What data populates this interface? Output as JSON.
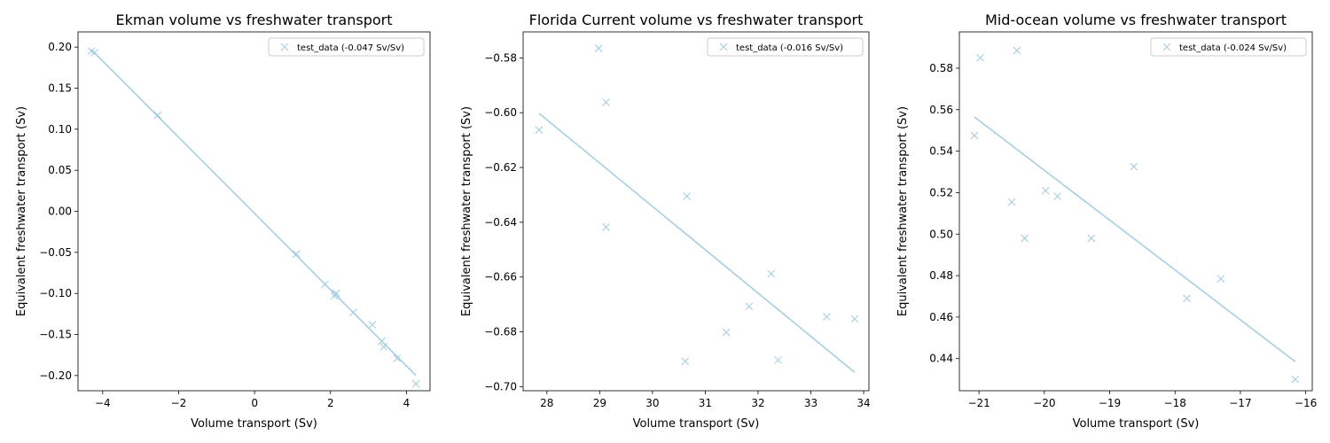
{
  "chart_data": [
    {
      "type": "scatter",
      "title": "Ekman volume vs freshwater transport",
      "xlabel": "Volume transport (Sv)",
      "ylabel": "Equivalent freshwater transport (Sv)",
      "xlim": [
        -4.65,
        4.62
      ],
      "ylim": [
        -0.2185,
        0.2185
      ],
      "xticks": [
        -4,
        -2,
        0,
        2,
        4
      ],
      "yticks": [
        -0.2,
        -0.15,
        -0.1,
        -0.05,
        0.0,
        0.05,
        0.1,
        0.15,
        0.2
      ],
      "ytick_labels": [
        "−0.20",
        "−0.15",
        "−0.10",
        "−0.05",
        "0.00",
        "0.05",
        "0.10",
        "0.15",
        "0.20"
      ],
      "xtick_labels": [
        "−4",
        "−2",
        "0",
        "2",
        "4"
      ],
      "legend": {
        "label": "test_data (-0.047 Sv/Sv)",
        "position": "upper right"
      },
      "series": [
        {
          "name": "test_data (-0.047 Sv/Sv)",
          "color": "#a6cee3",
          "marker": "x",
          "x": [
            -4.3,
            -4.22,
            -2.55,
            1.1,
            1.85,
            2.1,
            2.15,
            2.6,
            3.1,
            3.35,
            3.4,
            3.75,
            4.25
          ],
          "y": [
            0.195,
            0.193,
            0.117,
            -0.052,
            -0.089,
            -0.103,
            -0.1,
            -0.123,
            -0.138,
            -0.158,
            -0.165,
            -0.179,
            -0.21
          ],
          "fit": {
            "x": [
              -4.3,
              4.25
            ],
            "y": [
              0.197,
              -0.2
            ]
          }
        }
      ]
    },
    {
      "type": "scatter",
      "title": "Florida Current volume vs freshwater transport",
      "xlabel": "Volume transport (Sv)",
      "ylabel": "Equivalent freshwater transport (Sv)",
      "xlim": [
        27.55,
        34.1
      ],
      "ylim": [
        -0.7015,
        -0.5705
      ],
      "xticks": [
        28,
        29,
        30,
        31,
        32,
        33,
        34
      ],
      "yticks": [
        -0.7,
        -0.68,
        -0.66,
        -0.64,
        -0.62,
        -0.6,
        -0.58
      ],
      "ytick_labels": [
        "−0.70",
        "−0.68",
        "−0.66",
        "−0.64",
        "−0.62",
        "−0.60",
        "−0.58"
      ],
      "xtick_labels": [
        "28",
        "29",
        "30",
        "31",
        "32",
        "33",
        "34"
      ],
      "legend": {
        "label": "test_data (-0.016 Sv/Sv)",
        "position": "upper right"
      },
      "series": [
        {
          "name": "test_data (-0.016 Sv/Sv)",
          "color": "#a6cee3",
          "marker": "x",
          "x": [
            27.85,
            28.98,
            29.12,
            29.12,
            30.62,
            30.65,
            31.4,
            31.83,
            32.25,
            32.38,
            33.3,
            33.83
          ],
          "y": [
            -0.6063,
            -0.5765,
            -0.5962,
            -0.6418,
            -0.6908,
            -0.6305,
            -0.6802,
            -0.6707,
            -0.6588,
            -0.6903,
            -0.6745,
            -0.6753
          ],
          "fit": {
            "x": [
              27.85,
              33.83
            ],
            "y": [
              -0.6002,
              -0.6948
            ]
          }
        }
      ]
    },
    {
      "type": "scatter",
      "title": "Mid-ocean volume vs freshwater transport",
      "xlabel": "Volume transport (Sv)",
      "ylabel": "Equivalent freshwater transport (Sv)",
      "xlim": [
        -21.3,
        -15.9
      ],
      "ylim": [
        0.4245,
        0.5975
      ],
      "xticks": [
        -21,
        -20,
        -19,
        -18,
        -17,
        -16
      ],
      "yticks": [
        0.44,
        0.46,
        0.48,
        0.5,
        0.52,
        0.54,
        0.56,
        0.58
      ],
      "ytick_labels": [
        "0.44",
        "0.46",
        "0.48",
        "0.50",
        "0.52",
        "0.54",
        "0.56",
        "0.58"
      ],
      "xtick_labels": [
        "−21",
        "−20",
        "−19",
        "−18",
        "−17",
        "−16"
      ],
      "legend": {
        "label": "test_data (-0.024 Sv/Sv)",
        "position": "upper right"
      },
      "series": [
        {
          "name": "test_data (-0.024 Sv/Sv)",
          "color": "#a6cee3",
          "marker": "x",
          "x": [
            -21.07,
            -20.98,
            -20.5,
            -20.42,
            -20.3,
            -19.98,
            -19.8,
            -19.28,
            -18.63,
            -17.82,
            -17.3,
            -16.16
          ],
          "y": [
            0.5475,
            0.585,
            0.5155,
            0.5885,
            0.498,
            0.521,
            0.5182,
            0.498,
            0.5325,
            0.469,
            0.4785,
            0.43
          ],
          "fit": {
            "x": [
              -21.07,
              -16.16
            ],
            "y": [
              0.5565,
              0.4385
            ]
          }
        }
      ]
    }
  ]
}
